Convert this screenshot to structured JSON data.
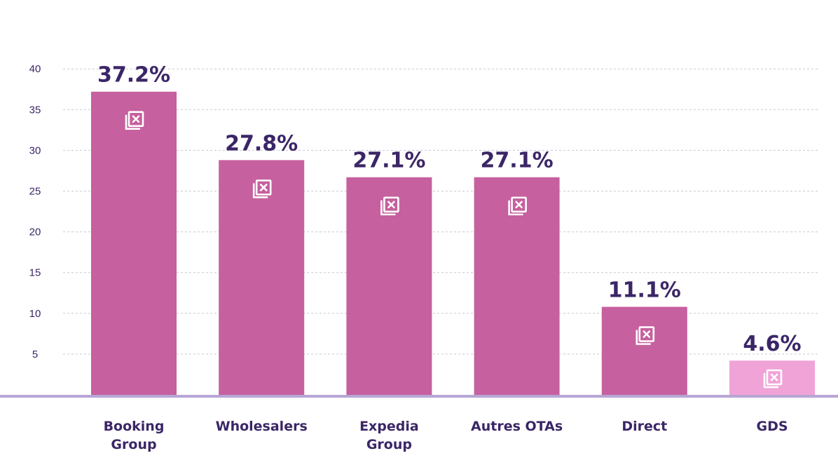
{
  "chart_data": {
    "type": "bar",
    "categories": [
      "Booking Group",
      "Wholesalers",
      "Expedia Group",
      "Autres OTAs",
      "Direct",
      "GDS"
    ],
    "category_lines": [
      [
        "Booking",
        "Group"
      ],
      [
        "Wholesalers"
      ],
      [
        "Expedia",
        "Group"
      ],
      [
        "Autres OTAs"
      ],
      [
        "Direct"
      ],
      [
        "GDS"
      ]
    ],
    "values": [
      37.2,
      27.8,
      27.1,
      27.1,
      11.1,
      4.6
    ],
    "bar_heights_visual": [
      37.2,
      28.8,
      26.7,
      26.7,
      10.8,
      4.2
    ],
    "value_labels": [
      "37.2%",
      "27.8%",
      "27.1%",
      "27.1%",
      "11.1%",
      "4.6%"
    ],
    "yticks": [
      5,
      10,
      15,
      20,
      25,
      30,
      35,
      40
    ],
    "ytick_labels": [
      "5",
      "10",
      "15",
      "20",
      "25",
      "30",
      "35",
      "40"
    ],
    "ylim": [
      0,
      40
    ],
    "grid": true,
    "title": "",
    "xlabel": "",
    "ylabel": "",
    "colors": {
      "bar": "#c6609e",
      "bar_highlight": "#f0a3d7",
      "text": "#3b2667",
      "grid": "#c9c9d6",
      "baseline": "#b7a6d6",
      "icon": "#ffffff"
    },
    "bar_icon": "image-placeholder-icon"
  }
}
